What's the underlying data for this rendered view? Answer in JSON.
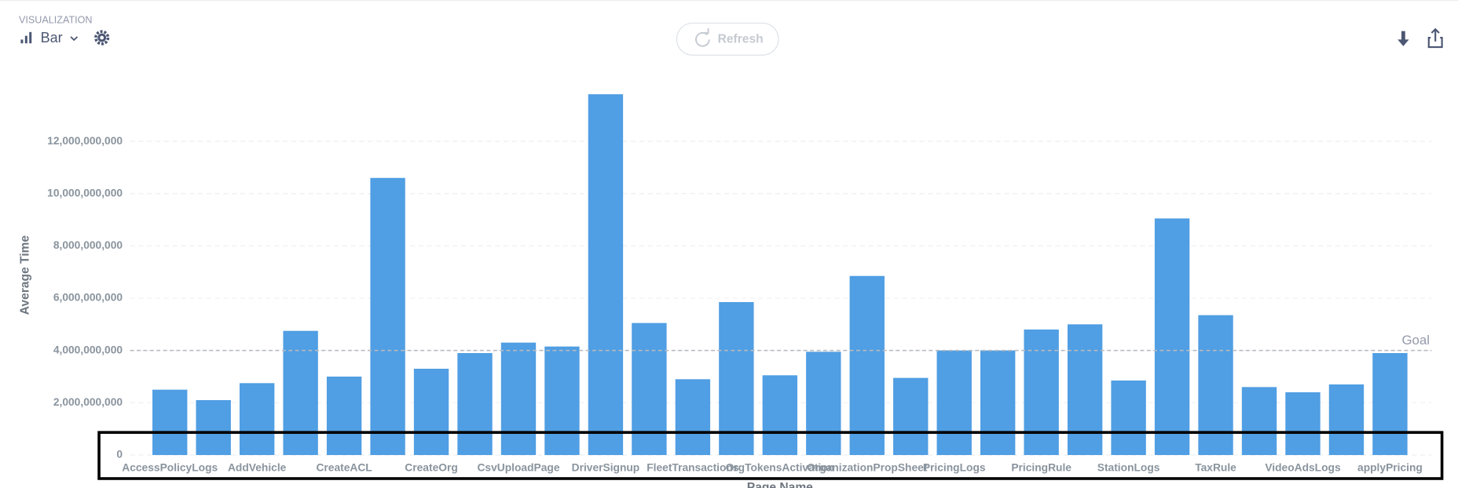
{
  "header": {
    "section": "VISUALIZATION",
    "viz_type": "Bar",
    "refresh": "Refresh"
  },
  "chart_data": {
    "type": "bar",
    "x_label": "Page Name",
    "y_label": "Average Time",
    "categories": [
      "AccessPolicyLogs",
      null,
      "AddVehicle",
      null,
      "CreateACL",
      null,
      "CreateOrg",
      null,
      "CsvUploadPage",
      null,
      "DriverSignup",
      null,
      "FleetTransactions",
      null,
      "OrgTokensActivation",
      null,
      "OrganizationPropSheet",
      null,
      "PricingLogs",
      null,
      "PricingRule",
      null,
      "StationLogs",
      null,
      "TaxRule",
      null,
      "VideoAdsLogs",
      null,
      "applyPricing"
    ],
    "values": [
      2500000000,
      2100000000,
      2750000000,
      4750000000,
      3000000000,
      10600000000,
      3300000000,
      3900000000,
      4300000000,
      4150000000,
      13800000000,
      5050000000,
      2900000000,
      5850000000,
      3050000000,
      3950000000,
      6850000000,
      2950000000,
      4000000000,
      4000000000,
      4800000000,
      5000000000,
      2850000000,
      9050000000,
      5350000000,
      2600000000,
      2400000000,
      2700000000,
      3900000000
    ],
    "color": "#509ee3",
    "ylim": [
      0,
      14000000000
    ],
    "yticks": [
      0,
      {
        "value": 2000000000,
        "label": "2,000,000,000"
      },
      {
        "value": 4000000000,
        "label": "4,000,000,000"
      },
      {
        "value": 6000000000,
        "label": "6,000,000,000"
      },
      {
        "value": 8000000000,
        "label": "8,000,000,000"
      },
      {
        "value": 10000000000,
        "label": "10,000,000,000"
      },
      {
        "value": 12000000000,
        "label": "12,000,000,000"
      }
    ],
    "grid": true,
    "goal": {
      "value": 4000000000,
      "label": "Goal"
    }
  }
}
